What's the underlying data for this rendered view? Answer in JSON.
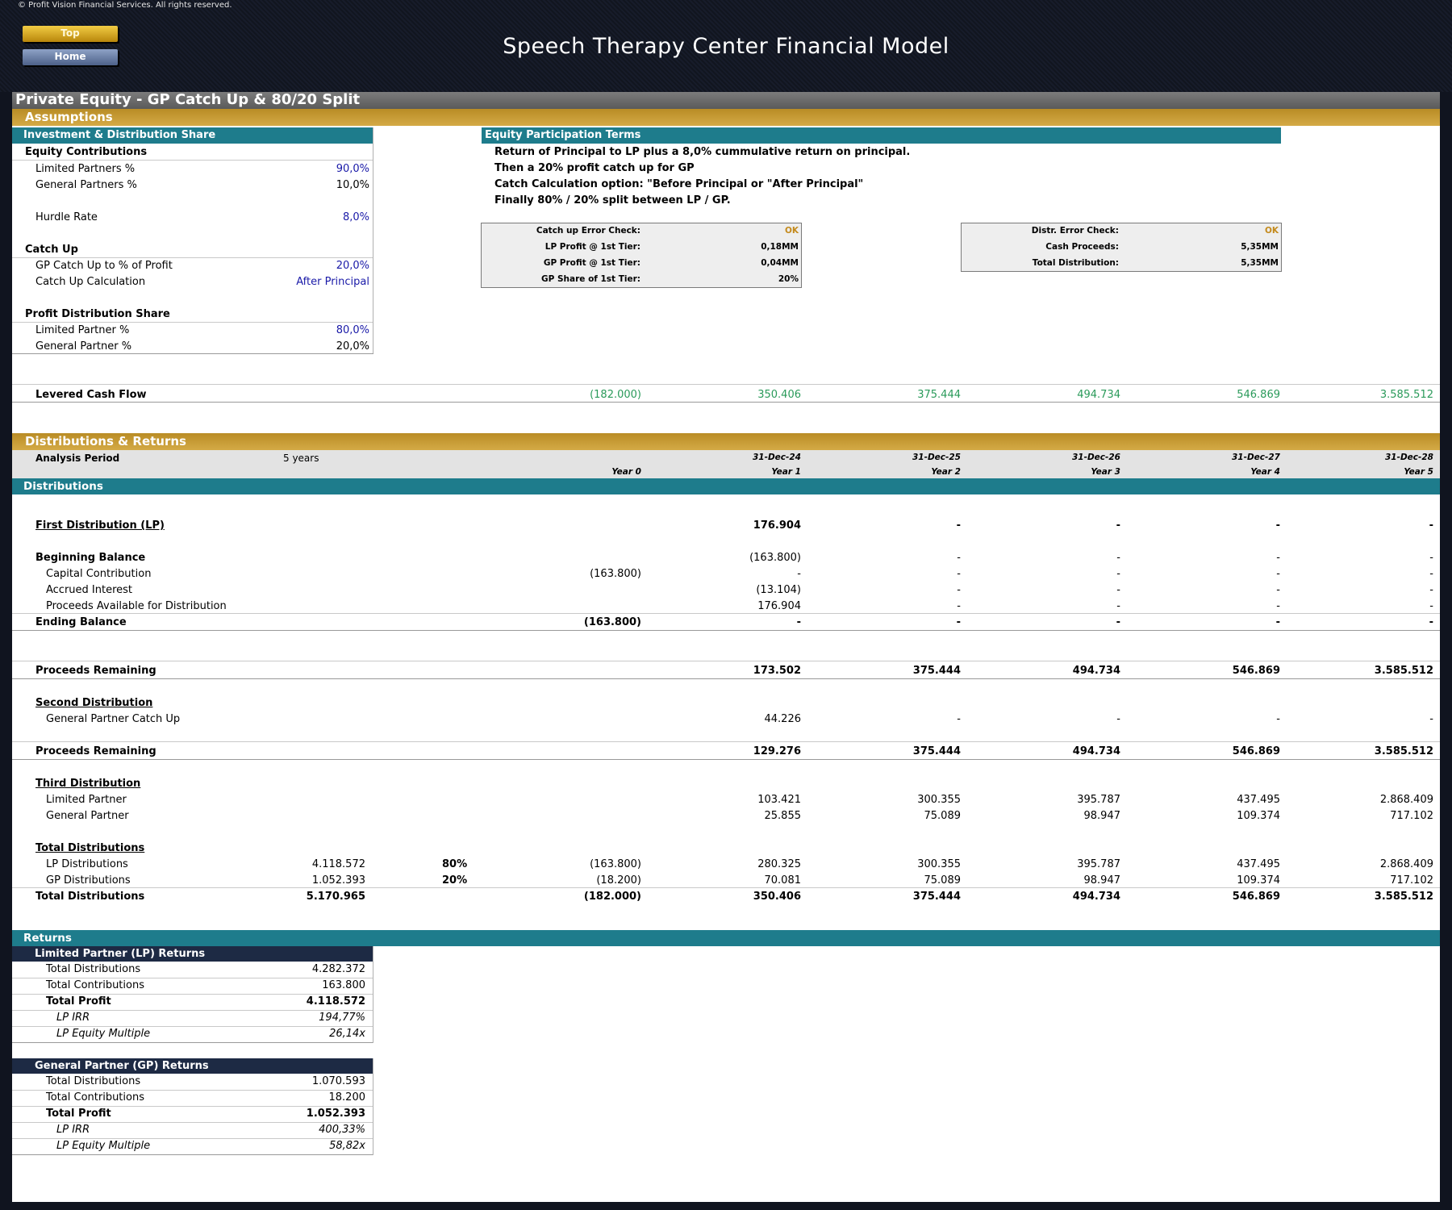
{
  "copyright": "© Profit Vision Financial Services. All rights reserved.",
  "nav": {
    "top": "Top",
    "home": "Home"
  },
  "title": "Speech Therapy Center Financial Model",
  "section_title": "Private Equity - GP Catch Up & 80/20 Split",
  "assumptions": {
    "header": "Assumptions",
    "inv_header": "Investment & Distribution Share",
    "equity_contributions": "Equity Contributions",
    "lp_pct_label": "Limited Partners %",
    "lp_pct": "90,0%",
    "gp_pct_label": "General Partners %",
    "gp_pct": "10,0%",
    "hurdle_label": "Hurdle Rate",
    "hurdle": "8,0%",
    "catch_up": "Catch Up",
    "gp_catch_label": "GP Catch Up to % of Profit",
    "gp_catch": "20,0%",
    "catch_calc_label": "Catch Up Calculation",
    "catch_calc": "After Principal",
    "profit_share": "Profit Distribution Share",
    "lp_share_label": "Limited Partner %",
    "lp_share": "80,0%",
    "gp_share_label": "General Partner %",
    "gp_share": "20,0%"
  },
  "terms": {
    "header": "Equity Participation Terms",
    "lines": [
      "Return of Principal to LP plus a 8,0% cummulative return on principal.",
      "Then a 20% profit catch up for GP",
      "Catch Calculation option: \"Before Principal or \"After Principal\"",
      "Finally 80% / 20% split between LP / GP."
    ]
  },
  "check1": {
    "l1": "Catch up Error Check:",
    "v1": "OK",
    "l2": "LP Profit @ 1st Tier:",
    "v2": "0,18MM",
    "l3": "GP Profit @ 1st Tier:",
    "v3": "0,04MM",
    "l4": "GP Share of 1st Tier:",
    "v4": "20%"
  },
  "check2": {
    "l1": "Distr. Error Check:",
    "v1": "OK",
    "l2": "Cash Proceeds:",
    "v2": "5,35MM",
    "l3": "Total Distribution:",
    "v3": "5,35MM"
  },
  "levered": {
    "label": "Levered Cash Flow",
    "values": [
      "(182.000)",
      "350.406",
      "375.444",
      "494.734",
      "546.869",
      "3.585.512"
    ]
  },
  "dist_header": "Distributions & Returns",
  "analysis": {
    "label": "Analysis Period",
    "value": "5 years",
    "dates": [
      "31-Dec-24",
      "31-Dec-25",
      "31-Dec-26",
      "31-Dec-27",
      "31-Dec-28"
    ],
    "years": [
      "Year 0",
      "Year 1",
      "Year 2",
      "Year 3",
      "Year 4",
      "Year 5"
    ]
  },
  "distributions_bar": "Distributions",
  "first": {
    "label": "First Distribution (LP)",
    "values": [
      "176.904",
      "-",
      "-",
      "-",
      "-"
    ]
  },
  "begin": {
    "label": "Beginning Balance",
    "values": [
      "(163.800)",
      "-",
      "-",
      "-",
      "-"
    ]
  },
  "capital": {
    "label": "Capital Contribution",
    "y0": "(163.800)",
    "values": [
      "-",
      "-",
      "-",
      "-",
      "-"
    ]
  },
  "accrued": {
    "label": "Accrued Interest",
    "values": [
      "(13.104)",
      "-",
      "-",
      "-",
      "-"
    ]
  },
  "proceeds_avail": {
    "label": "Proceeds Available for Distribution",
    "values": [
      "176.904",
      "-",
      "-",
      "-",
      "-"
    ]
  },
  "ending": {
    "label": "Ending Balance",
    "y0": "(163.800)",
    "values": [
      "-",
      "-",
      "-",
      "-",
      "-"
    ]
  },
  "remaining1": {
    "label": "Proceeds Remaining",
    "values": [
      "173.502",
      "375.444",
      "494.734",
      "546.869",
      "3.585.512"
    ]
  },
  "second": {
    "label": "Second Distribution",
    "sub": "General Partner Catch Up",
    "values": [
      "44.226",
      "-",
      "-",
      "-",
      "-"
    ]
  },
  "remaining2": {
    "label": "Proceeds Remaining",
    "values": [
      "129.276",
      "375.444",
      "494.734",
      "546.869",
      "3.585.512"
    ]
  },
  "third": {
    "label": "Third Distribution",
    "lp_label": "Limited Partner",
    "lp": [
      "103.421",
      "300.355",
      "395.787",
      "437.495",
      "2.868.409"
    ],
    "gp_label": "General Partner",
    "gp": [
      "25.855",
      "75.089",
      "98.947",
      "109.374",
      "717.102"
    ]
  },
  "totals": {
    "label": "Total Distributions",
    "lp": {
      "label": "LP Distributions",
      "total": "4.118.572",
      "pct": "80%",
      "y0": "(163.800)",
      "values": [
        "280.325",
        "300.355",
        "395.787",
        "437.495",
        "2.868.409"
      ]
    },
    "gp": {
      "label": "GP Distributions",
      "total": "1.052.393",
      "pct": "20%",
      "y0": "(18.200)",
      "values": [
        "70.081",
        "75.089",
        "98.947",
        "109.374",
        "717.102"
      ]
    },
    "all": {
      "label": "Total Distributions",
      "total": "5.170.965",
      "y0": "(182.000)",
      "values": [
        "350.406",
        "375.444",
        "494.734",
        "546.869",
        "3.585.512"
      ]
    }
  },
  "returns_bar": "Returns",
  "lp_returns": {
    "header": "Limited Partner (LP) Returns",
    "dist_label": "Total Distributions",
    "dist": "4.282.372",
    "contrib_label": "Total Contributions",
    "contrib": "163.800",
    "profit_label": "Total Profit",
    "profit": "4.118.572",
    "irr_label": "LP IRR",
    "irr": "194,77%",
    "mult_label": "LP Equity Multiple",
    "mult": "26,14x"
  },
  "gp_returns": {
    "header": "General Partner (GP) Returns",
    "dist_label": "Total Distributions",
    "dist": "1.070.593",
    "contrib_label": "Total Contributions",
    "contrib": "18.200",
    "profit_label": "Total Profit",
    "profit": "1.052.393",
    "irr_label": "LP IRR",
    "irr": "400,33%",
    "mult_label": "LP Equity Multiple",
    "mult": "58,82x"
  }
}
